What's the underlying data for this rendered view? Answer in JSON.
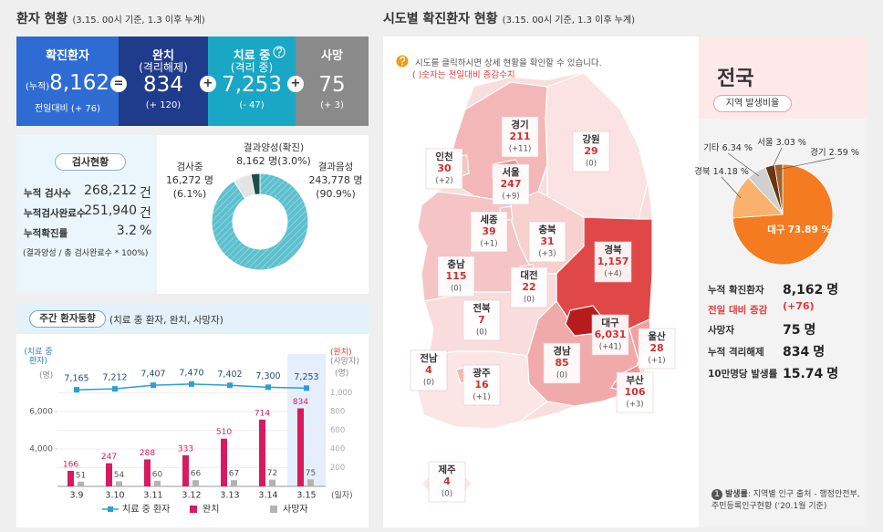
{
  "patient_status": {
    "title": "환자 현황",
    "subtitle": "(3.15. 00시 기준, 1.3 이후 누계)",
    "cards": [
      {
        "label": "확진환자",
        "prefix": "(누적)",
        "value": "8,162",
        "change": "전일대비 (+ 76)"
      },
      {
        "label": "완치",
        "sublabel": "(격리해제)",
        "value": "834",
        "change": "(+ 120)"
      },
      {
        "label": "치료 중",
        "sublabel": "(격리 중)",
        "value": "7,253",
        "change": "(- 47)"
      },
      {
        "label": "사망",
        "value": "75",
        "change": "(+ 3)"
      }
    ],
    "operators": [
      "=",
      "+",
      "+"
    ]
  },
  "tests": {
    "title": "검사현황",
    "rows": [
      {
        "label": "누적 검사수",
        "value": "268,212",
        "unit": "건"
      },
      {
        "label": "누적검사완료수",
        "value": "251,940",
        "unit": "건"
      },
      {
        "label": "누적확진률",
        "value": "3.2",
        "unit": "%"
      }
    ],
    "note": "(결과양성 / 총 검사완료수 * 100%)"
  },
  "map": {
    "title": "시도별 확진환자 현황",
    "subtitle": "(3.15. 00시 기준, 1.3 이후 누계)",
    "hint": "시도를 클릭하시면 상세 현황을 확인할 수 있습니다.",
    "hint_note": "( )숫자는 전일대비 증감수치",
    "regions": [
      {
        "name": "경기",
        "count": "211",
        "change": "(+11)"
      },
      {
        "name": "강원",
        "count": "29",
        "change": "(0)"
      },
      {
        "name": "인천",
        "count": "30",
        "change": "(+2)"
      },
      {
        "name": "서울",
        "count": "247",
        "change": "(+9)"
      },
      {
        "name": "세종",
        "count": "39",
        "change": "(+1)"
      },
      {
        "name": "충북",
        "count": "31",
        "change": "(+3)"
      },
      {
        "name": "충남",
        "count": "115",
        "change": "(0)"
      },
      {
        "name": "대전",
        "count": "22",
        "change": "(0)"
      },
      {
        "name": "경북",
        "count": "1,157",
        "change": "(+4)"
      },
      {
        "name": "전북",
        "count": "7",
        "change": "(0)"
      },
      {
        "name": "대구",
        "count": "6,031",
        "change": "(+41)"
      },
      {
        "name": "울산",
        "count": "28",
        "change": "(+1)"
      },
      {
        "name": "전남",
        "count": "4",
        "change": "(0)"
      },
      {
        "name": "광주",
        "count": "16",
        "change": "(+1)"
      },
      {
        "name": "경남",
        "count": "85",
        "change": "(0)"
      },
      {
        "name": "부산",
        "count": "106",
        "change": "(+3)"
      },
      {
        "name": "제주",
        "count": "4",
        "change": "(0)"
      }
    ]
  },
  "national": {
    "title": "전국",
    "subtitle": "지역 발생비율",
    "stats": [
      {
        "label": "누적 확진환자",
        "value": "8,162",
        "unit": "명"
      },
      {
        "label": "전일 대비 증감",
        "value": "(+76)"
      },
      {
        "label": "사망자",
        "value": "75",
        "unit": "명"
      },
      {
        "label": "누적 격리해제",
        "value": "834",
        "unit": "명"
      },
      {
        "label": "10만명당 발생률",
        "value": "15.74",
        "unit": "명"
      }
    ],
    "footnote": {
      "number": "1",
      "label": "발생률",
      "text": ": 지역별 인구 출처 - 행정안전부, 주민등록인구현황 ('20.1월 기준)"
    }
  },
  "chart_data": [
    {
      "type": "donut",
      "labels": [
        "검사중",
        "결과양성(확진)",
        "결과음성"
      ],
      "values": [
        6.1,
        3.0,
        90.9
      ],
      "value_labels": [
        "(6.1%)",
        "(3.0%)",
        "(90.9%)"
      ],
      "counts": [
        16272,
        8162,
        243778
      ],
      "count_labels": [
        "16,272 명",
        "8,162 명",
        "243,778 명"
      ],
      "colors": [
        "#e4e4e4",
        "#1d4f4f",
        "#3db1c2"
      ]
    },
    {
      "type": "combo",
      "title": "주간 환자동향",
      "subtitle": "(치료 중 환자, 완치, 사망자)",
      "categories": [
        "3.9",
        "3.10",
        "3.11",
        "3.12",
        "3.13",
        "3.14",
        "3.15"
      ],
      "x_label": "(일자)",
      "y_label": "(치료 중 환자)",
      "y_unit": "(명)",
      "y2_labels": [
        "(완치)",
        "(사망자)"
      ],
      "y2_unit": "(명)",
      "ylim": [
        2000,
        8000
      ],
      "yticks": [
        {
          "value": 4000,
          "label": "4,000"
        },
        {
          "value": 6000,
          "label": "6,000"
        }
      ],
      "y2lim": [
        0,
        1200
      ],
      "y2ticks": [
        200,
        400,
        600,
        800,
        {
          "value": 1000,
          "label": "1,000"
        }
      ],
      "grid": true,
      "series": [
        {
          "name": "치료 중 환자",
          "type": "line",
          "color": "#2a9fd8",
          "values": [
            7165,
            7212,
            7407,
            7470,
            7402,
            7300,
            7253
          ],
          "value_labels": [
            "7,165",
            "7,212",
            "7,407",
            "7,470",
            "7,402",
            "7,300",
            "7,253"
          ]
        },
        {
          "name": "완치",
          "type": "bar",
          "axis": "y2",
          "color": "#d81b60",
          "values": [
            166,
            247,
            288,
            333,
            510,
            714,
            834
          ]
        },
        {
          "name": "사망자",
          "type": "bar",
          "axis": "y2",
          "color": "#b3b3b3",
          "values": [
            51,
            54,
            60,
            66,
            67,
            72,
            75
          ]
        }
      ]
    },
    {
      "type": "pie",
      "labels": [
        "대구",
        "경북",
        "기타",
        "서울",
        "경기"
      ],
      "values": [
        73.89,
        14.18,
        6.34,
        3.03,
        2.59
      ],
      "value_labels": [
        "73.89 %",
        "14.18 %",
        "6.34 %",
        "3.03 %",
        "2.59 %"
      ],
      "colors": [
        "#f47b20",
        "#f9b26e",
        "#d0d0d0",
        "#6b3510",
        "#a0622a"
      ]
    }
  ]
}
